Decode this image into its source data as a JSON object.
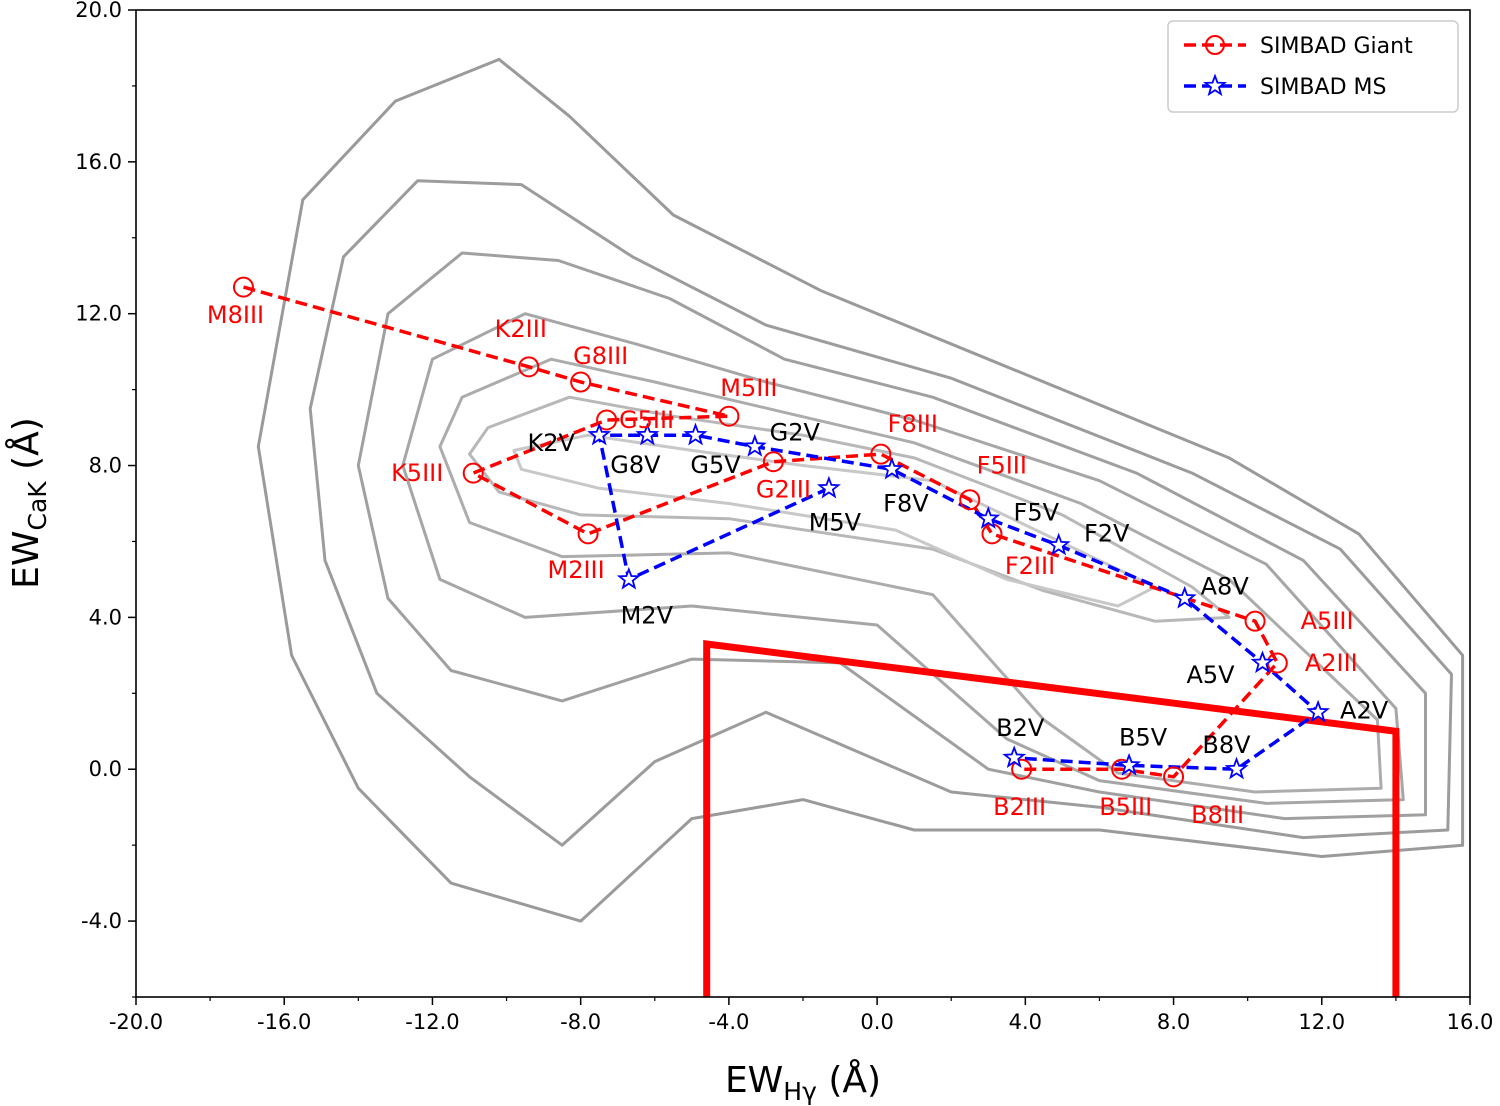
{
  "chart_data": {
    "type": "scatter",
    "xlabel": "EW",
    "xlabel_sub": "Hγ",
    "xlabel_unit": " (Å)",
    "ylabel": "EW",
    "ylabel_sub": "CaK",
    "ylabel_unit": " (Å)",
    "xlim": [
      -20,
      16
    ],
    "ylim": [
      -6,
      20
    ],
    "xticks": [
      -20,
      -16,
      -12,
      -8,
      -4,
      0,
      4,
      8,
      12,
      16
    ],
    "xtick_labels": [
      "-20.0",
      "-16.0",
      "-12.0",
      "-8.0",
      "-4.0",
      "0.0",
      "4.0",
      "8.0",
      "12.0",
      "16.0"
    ],
    "yticks": [
      -4,
      0,
      4,
      8,
      12,
      16,
      20
    ],
    "ytick_labels": [
      "-4.0",
      "0.0",
      "4.0",
      "8.0",
      "12.0",
      "16.0",
      "20.0"
    ],
    "legend": {
      "position": "top-right",
      "entries": [
        "SIMBAD Giant",
        "SIMBAD MS"
      ]
    },
    "series": [
      {
        "name": "SIMBAD Giant",
        "color": "#ff0000",
        "marker": "circle",
        "linestyle": "dashed",
        "points": [
          {
            "label": "M8III",
            "x": -17.1,
            "y": 12.7
          },
          {
            "label": "K2III",
            "x": -9.4,
            "y": 10.6
          },
          {
            "label": "G8III",
            "x": -8.0,
            "y": 10.2
          },
          {
            "label": "M5III",
            "x": -4.0,
            "y": 9.3
          },
          {
            "label": "G5III",
            "x": -7.3,
            "y": 9.2
          },
          {
            "label": "K5III",
            "x": -10.9,
            "y": 7.8
          },
          {
            "label": "M2III",
            "x": -7.8,
            "y": 6.2
          },
          {
            "label": "G2III",
            "x": -2.8,
            "y": 8.1
          },
          {
            "label": "F8III",
            "x": 0.1,
            "y": 8.3
          },
          {
            "label": "F5III",
            "x": 2.5,
            "y": 7.1
          },
          {
            "label": "F2III",
            "x": 3.1,
            "y": 6.2
          },
          {
            "label": "A5III",
            "x": 10.2,
            "y": 3.9
          },
          {
            "label": "A2III",
            "x": 10.8,
            "y": 2.8
          },
          {
            "label": "B8III",
            "x": 8.0,
            "y": -0.2
          },
          {
            "label": "B5III",
            "x": 6.6,
            "y": 0.0
          },
          {
            "label": "B2III",
            "x": 3.9,
            "y": 0.0
          }
        ]
      },
      {
        "name": "SIMBAD MS",
        "color": "#0000ff",
        "marker": "star",
        "linestyle": "dashed",
        "points": [
          {
            "label": "M5V",
            "x": -1.3,
            "y": 7.4
          },
          {
            "label": "M2V",
            "x": -6.7,
            "y": 5.0
          },
          {
            "label": "K2V",
            "x": -7.5,
            "y": 8.8
          },
          {
            "label": "G8V",
            "x": -6.2,
            "y": 8.8
          },
          {
            "label": "G5V",
            "x": -4.9,
            "y": 8.8
          },
          {
            "label": "G2V",
            "x": -3.3,
            "y": 8.5
          },
          {
            "label": "F8V",
            "x": 0.4,
            "y": 7.9
          },
          {
            "label": "F5V",
            "x": 3.0,
            "y": 6.6
          },
          {
            "label": "F2V",
            "x": 4.9,
            "y": 5.9
          },
          {
            "label": "A8V",
            "x": 8.3,
            "y": 4.5
          },
          {
            "label": "A5V",
            "x": 10.4,
            "y": 2.8
          },
          {
            "label": "A2V",
            "x": 11.9,
            "y": 1.5
          },
          {
            "label": "B8V",
            "x": 9.7,
            "y": 0.0
          },
          {
            "label": "B5V",
            "x": 6.8,
            "y": 0.1
          },
          {
            "label": "B2V",
            "x": 3.7,
            "y": 0.3
          }
        ]
      }
    ],
    "selection_box": {
      "color": "#ff0000",
      "vertices": [
        [
          -4.6,
          -6.0
        ],
        [
          -4.6,
          3.3
        ],
        [
          14.0,
          1.0
        ],
        [
          14.0,
          -6.0
        ]
      ]
    },
    "density_contours": {
      "color": "#999999",
      "levels": [
        [
          [
            -15.5,
            15.0
          ],
          [
            -13.0,
            17.6
          ],
          [
            -10.2,
            18.7
          ],
          [
            -8.3,
            17.2
          ],
          [
            -5.5,
            14.6
          ],
          [
            -1.5,
            12.6
          ],
          [
            3.0,
            10.8
          ],
          [
            9.5,
            8.2
          ],
          [
            13.0,
            6.2
          ],
          [
            15.8,
            3.0
          ],
          [
            15.8,
            -2.0
          ],
          [
            12.0,
            -2.3
          ],
          [
            6.0,
            -1.6
          ],
          [
            1.0,
            -1.6
          ],
          [
            -2.0,
            -0.8
          ],
          [
            -5.0,
            -1.3
          ],
          [
            -8.0,
            -4.0
          ],
          [
            -11.5,
            -3.0
          ],
          [
            -14.0,
            -0.5
          ],
          [
            -15.8,
            3.0
          ],
          [
            -16.7,
            8.5
          ]
        ],
        [
          [
            -14.4,
            13.5
          ],
          [
            -12.4,
            15.5
          ],
          [
            -9.6,
            15.4
          ],
          [
            -6.6,
            13.5
          ],
          [
            -3.0,
            11.7
          ],
          [
            2.0,
            10.3
          ],
          [
            8.5,
            7.8
          ],
          [
            12.5,
            5.8
          ],
          [
            15.5,
            2.5
          ],
          [
            15.4,
            -1.6
          ],
          [
            11.5,
            -1.8
          ],
          [
            6.0,
            -1.0
          ],
          [
            2.0,
            -0.6
          ],
          [
            -3.0,
            1.5
          ],
          [
            -6.0,
            0.2
          ],
          [
            -8.5,
            -2.0
          ],
          [
            -11.0,
            -0.2
          ],
          [
            -13.5,
            2.0
          ],
          [
            -14.9,
            5.5
          ],
          [
            -15.3,
            9.5
          ]
        ],
        [
          [
            -13.2,
            12.0
          ],
          [
            -11.2,
            13.6
          ],
          [
            -8.6,
            13.4
          ],
          [
            -5.6,
            12.4
          ],
          [
            -2.5,
            10.8
          ],
          [
            1.5,
            9.8
          ],
          [
            7.0,
            7.8
          ],
          [
            11.5,
            5.5
          ],
          [
            14.8,
            2.0
          ],
          [
            14.8,
            -1.2
          ],
          [
            11.0,
            -1.3
          ],
          [
            6.0,
            -0.6
          ],
          [
            3.0,
            0.0
          ],
          [
            -1.0,
            2.8
          ],
          [
            -5.0,
            2.9
          ],
          [
            -8.5,
            1.8
          ],
          [
            -11.5,
            2.6
          ],
          [
            -13.2,
            4.5
          ],
          [
            -14.0,
            8.0
          ]
        ],
        [
          [
            -12.0,
            10.8
          ],
          [
            -9.5,
            12.0
          ],
          [
            -6.5,
            11.2
          ],
          [
            -3.0,
            10.2
          ],
          [
            1.0,
            9.2
          ],
          [
            6.0,
            7.6
          ],
          [
            10.5,
            5.4
          ],
          [
            14.0,
            1.6
          ],
          [
            14.2,
            -0.8
          ],
          [
            10.5,
            -0.9
          ],
          [
            6.0,
            -0.3
          ],
          [
            3.5,
            0.8
          ],
          [
            0.0,
            3.8
          ],
          [
            -5.0,
            4.3
          ],
          [
            -9.5,
            4.0
          ],
          [
            -11.8,
            5.0
          ],
          [
            -12.8,
            8.0
          ]
        ],
        [
          [
            -11.2,
            9.8
          ],
          [
            -8.8,
            10.8
          ],
          [
            -6.0,
            10.2
          ],
          [
            -2.5,
            9.4
          ],
          [
            1.0,
            8.6
          ],
          [
            5.5,
            7.0
          ],
          [
            9.5,
            5.0
          ],
          [
            13.5,
            1.3
          ],
          [
            13.6,
            -0.5
          ],
          [
            10.2,
            -0.6
          ],
          [
            6.5,
            -0.1
          ],
          [
            4.5,
            1.3
          ],
          [
            1.5,
            4.6
          ],
          [
            -4.0,
            5.7
          ],
          [
            -8.5,
            5.6
          ],
          [
            -11.0,
            6.5
          ],
          [
            -11.8,
            8.5
          ]
        ],
        [
          [
            -10.5,
            9.0
          ],
          [
            -8.3,
            9.8
          ],
          [
            -5.5,
            9.3
          ],
          [
            -2.0,
            8.8
          ],
          [
            1.0,
            8.2
          ],
          [
            5.0,
            6.7
          ],
          [
            8.5,
            4.8
          ],
          [
            9.5,
            4.0
          ],
          [
            7.5,
            3.9
          ],
          [
            4.5,
            4.7
          ],
          [
            1.5,
            5.8
          ],
          [
            -4.0,
            6.6
          ],
          [
            -8.0,
            6.7
          ],
          [
            -10.2,
            7.3
          ],
          [
            -11.0,
            8.3
          ]
        ],
        [
          [
            -9.8,
            8.4
          ],
          [
            -7.8,
            8.8
          ],
          [
            -5.0,
            8.4
          ],
          [
            -2.0,
            8.0
          ],
          [
            1.5,
            7.6
          ],
          [
            4.5,
            6.2
          ],
          [
            7.5,
            4.8
          ],
          [
            6.5,
            4.3
          ],
          [
            3.5,
            5.0
          ],
          [
            0.5,
            6.3
          ],
          [
            -4.0,
            7.0
          ],
          [
            -7.5,
            7.4
          ],
          [
            -9.6,
            7.9
          ]
        ]
      ]
    }
  }
}
